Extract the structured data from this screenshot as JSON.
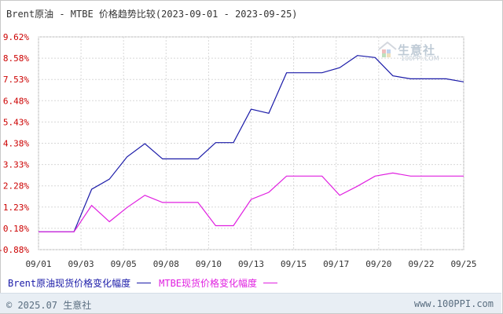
{
  "title": "Brent原油 - MTBE 价格趋势比较(2023-09-01 - 2023-09-25)",
  "watermark": {
    "brand": "生意社",
    "url": "100PPI.COM"
  },
  "legend": {
    "brent_label": "Brent原油现货价格变化幅度",
    "mtbe_label": "MTBE现货价格变化幅度"
  },
  "footer": {
    "copyright": "© 2025.07 生意社",
    "site": "www.100PPI.com"
  },
  "colors": {
    "brent": "#1a1aa8",
    "mtbe": "#e020e0",
    "axis_text": "#cc0000",
    "grid": "#d8d8d8"
  },
  "chart_data": {
    "type": "line",
    "title": "Brent原油 - MTBE 价格趋势比较(2023-09-01 - 2023-09-25)",
    "x_tick_labels": [
      "09/01",
      "09/03",
      "09/05",
      "09/08",
      "09/10",
      "09/13",
      "09/15",
      "09/17",
      "09/20",
      "09/22",
      "09/25"
    ],
    "y_tick_labels": [
      "9.62%",
      "8.58%",
      "7.53%",
      "6.48%",
      "5.43%",
      "4.38%",
      "3.33%",
      "2.28%",
      "1.23%",
      "0.18%",
      "-0.88%"
    ],
    "ylim": [
      -0.88,
      9.62
    ],
    "grid": true,
    "legend_position": "bottom",
    "x": [
      "09/01",
      "09/02",
      "09/03",
      "09/04",
      "09/05",
      "09/06",
      "09/07",
      "09/08",
      "09/09",
      "09/10",
      "09/11",
      "09/12",
      "09/13",
      "09/14",
      "09/15",
      "09/16",
      "09/17",
      "09/18",
      "09/19",
      "09/20",
      "09/21",
      "09/22",
      "09/23",
      "09/24",
      "09/25"
    ],
    "series": [
      {
        "name": "Brent原油现货价格变化幅度",
        "color": "#1a1aa8",
        "values": [
          0.0,
          0.0,
          0.0,
          2.1,
          2.6,
          3.7,
          4.35,
          3.6,
          3.6,
          3.6,
          4.4,
          4.4,
          6.05,
          5.85,
          7.85,
          7.85,
          7.85,
          8.1,
          8.7,
          8.6,
          7.7,
          7.55,
          7.55,
          7.55,
          7.4
        ]
      },
      {
        "name": "MTBE现货价格变化幅度",
        "color": "#e020e0",
        "values": [
          0.0,
          0.0,
          0.0,
          1.3,
          0.5,
          1.2,
          1.8,
          1.45,
          1.45,
          1.45,
          0.3,
          0.3,
          1.6,
          1.95,
          2.75,
          2.75,
          2.75,
          1.8,
          2.25,
          2.75,
          2.9,
          2.75,
          2.75,
          2.75,
          2.75
        ]
      }
    ]
  }
}
